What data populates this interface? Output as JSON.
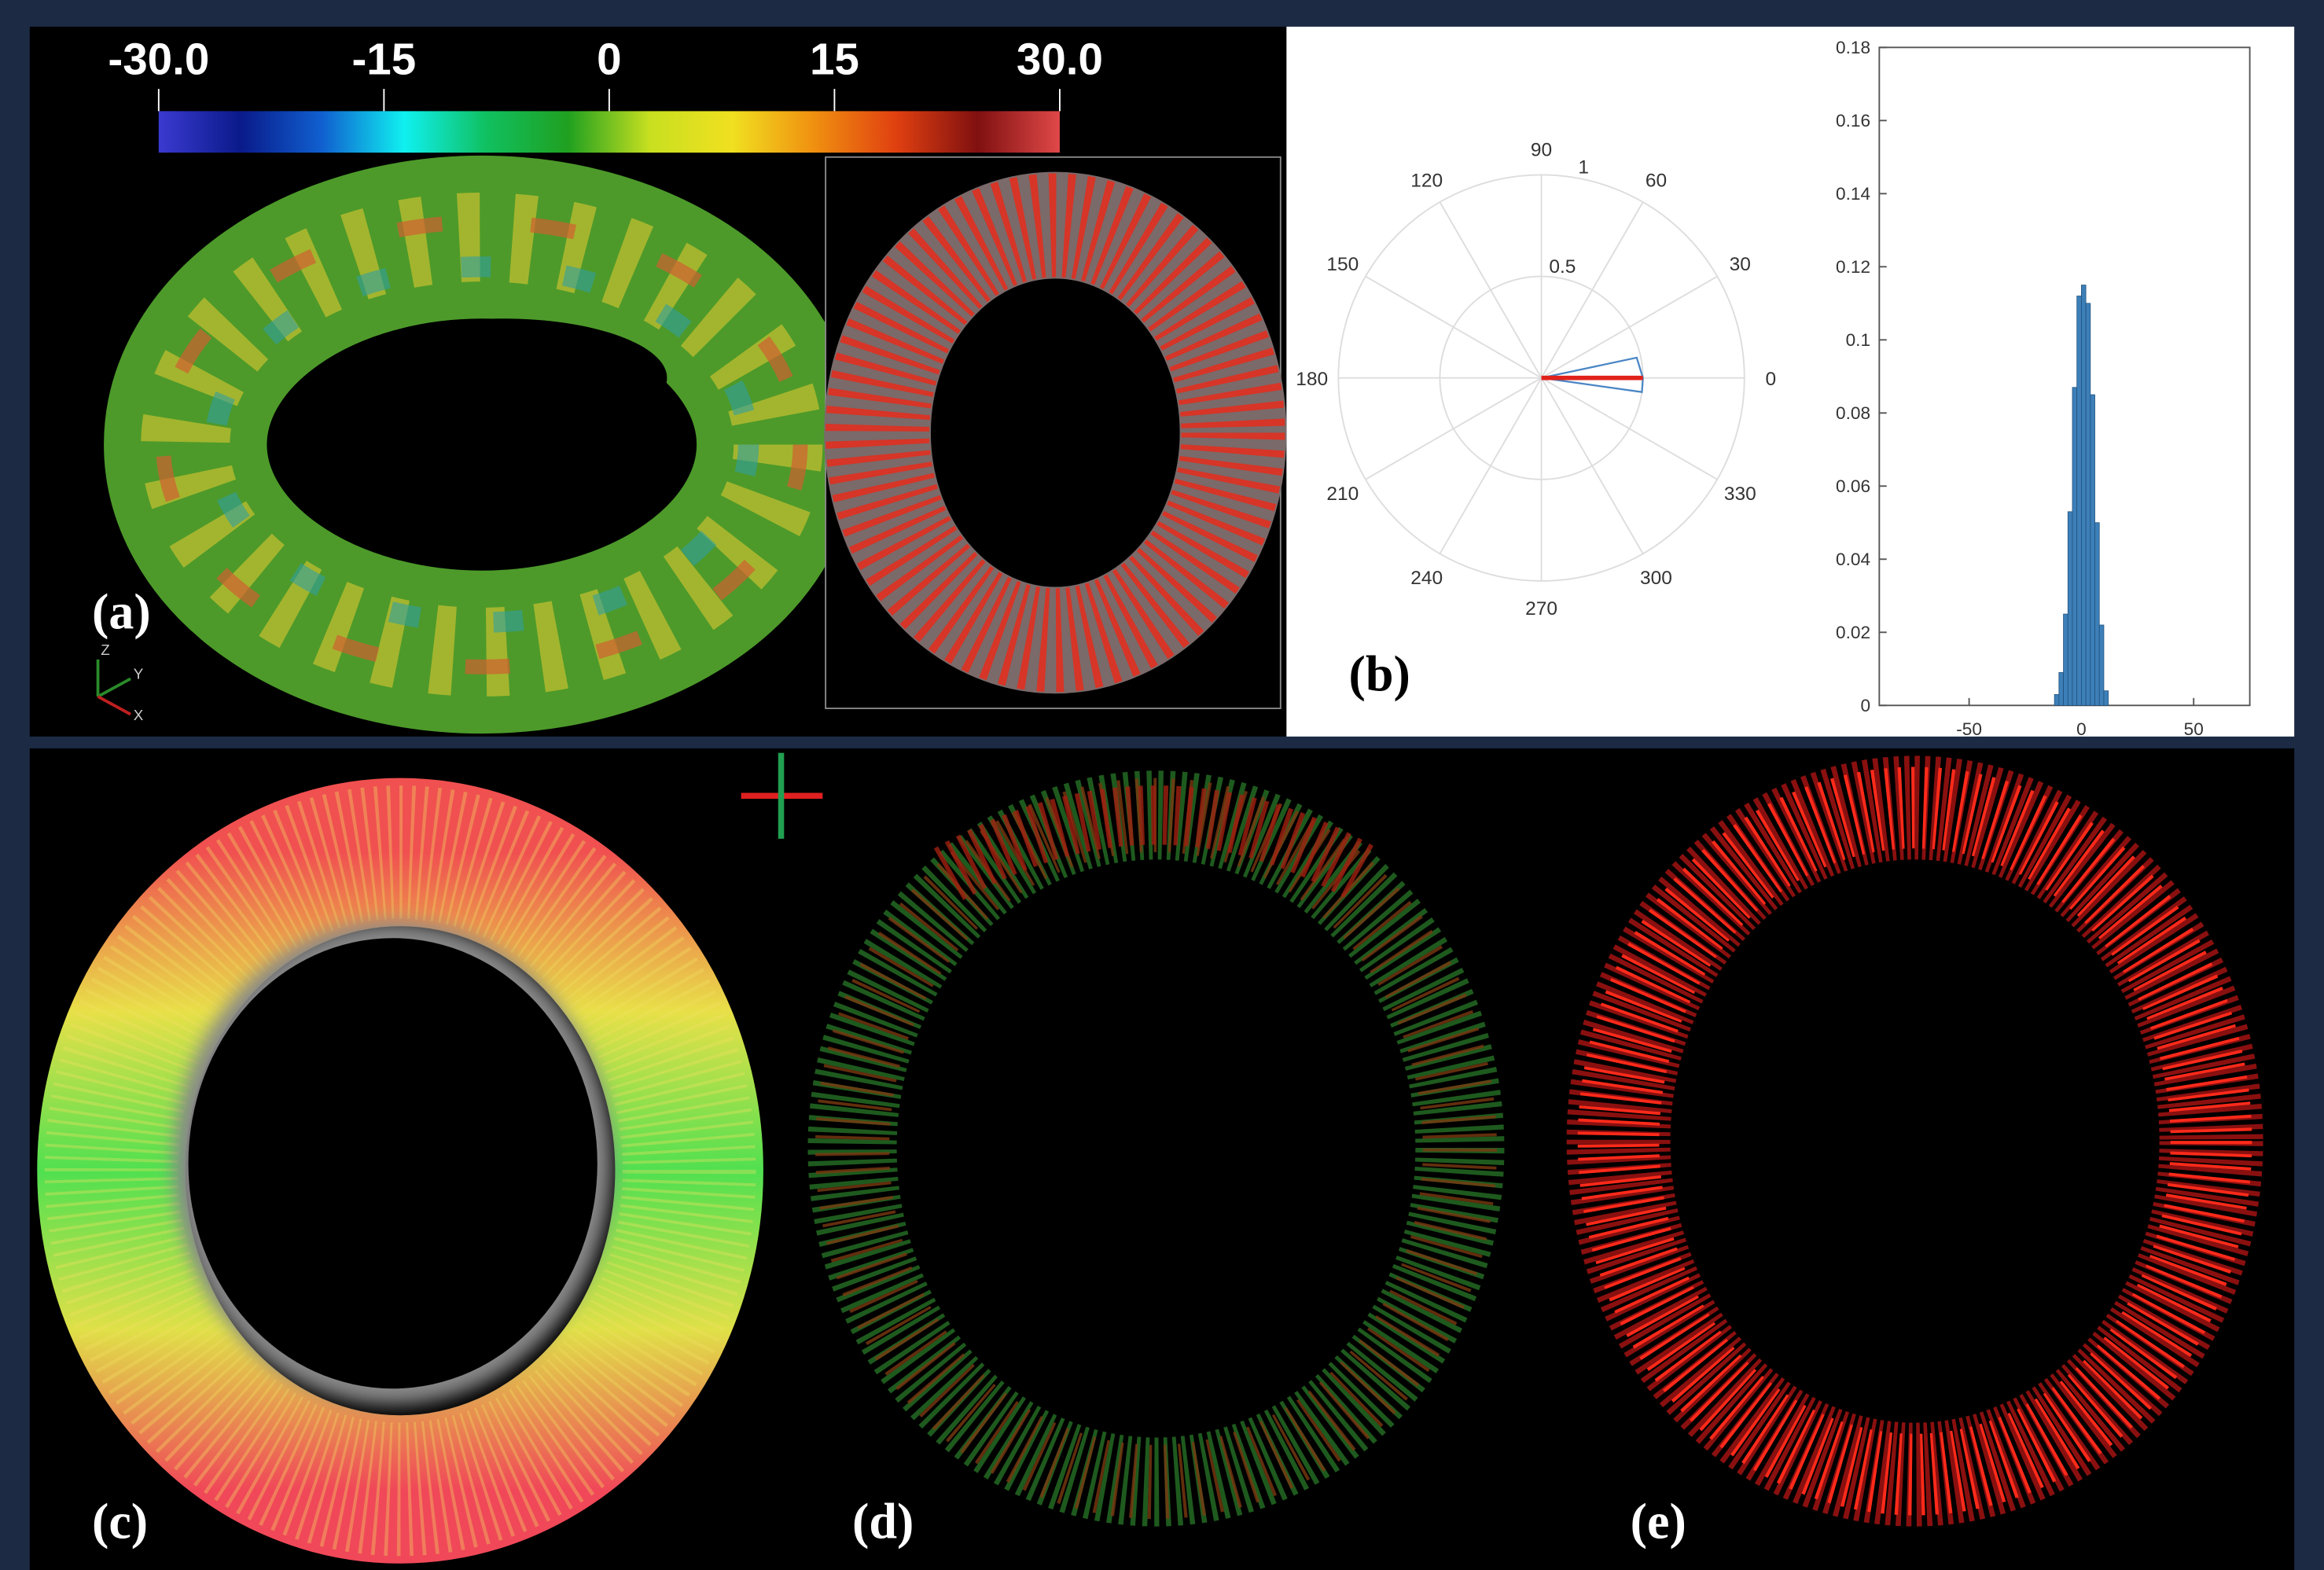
{
  "panels": {
    "a": "(a)",
    "b": "(b)",
    "c": "(c)",
    "d": "(d)",
    "e": "(e)"
  },
  "triad": [
    "Z",
    "Y",
    "X"
  ],
  "chart_data": [
    {
      "type": "colorbar",
      "xlim": [
        -30,
        30
      ],
      "xticks": [
        {
          "value": -30,
          "label": "-30.0"
        },
        -15,
        0,
        15,
        {
          "value": 30,
          "label": "30.0"
        }
      ],
      "colors": [
        "#3a3ad0",
        "#0a1a8a",
        "#1060d0",
        "#10f0f0",
        "#10c060",
        "#20a020",
        "#c8e020",
        "#f0e020",
        "#f09010",
        "#e04010",
        "#801010",
        "#e04848"
      ]
    },
    {
      "type": "polar",
      "rlim": [
        0,
        1
      ],
      "rticks": [
        0.5,
        1
      ],
      "thetaticks": [
        0,
        30,
        60,
        90,
        120,
        150,
        180,
        210,
        240,
        270,
        300,
        330
      ],
      "grid": true,
      "series": [
        {
          "color": "#4a86c5",
          "theta": [
            0,
            12,
            0,
            352,
            0
          ],
          "r": [
            0,
            0.48,
            0.5,
            0.5,
            0
          ]
        },
        {
          "color": "#e0221b",
          "theta": [
            0,
            0
          ],
          "r": [
            0,
            0.5
          ]
        }
      ]
    },
    {
      "type": "histogram",
      "color": "#3d7fb8",
      "bins": [
        -12,
        -10,
        -8,
        -6,
        -4,
        -2,
        0,
        2,
        4,
        6,
        8,
        10,
        12
      ],
      "values": [
        0.003,
        0.009,
        0.025,
        0.053,
        0.087,
        0.112,
        0.115,
        0.11,
        0.085,
        0.05,
        0.022,
        0.004
      ],
      "xlim": [
        -90,
        75
      ],
      "ylim": [
        0,
        0.18
      ],
      "xticks": [
        -50,
        0,
        50
      ],
      "yticks": [
        0,
        0.02,
        0.04,
        0.06,
        0.08,
        0.1,
        0.12,
        0.14,
        0.16,
        0.18
      ]
    }
  ]
}
